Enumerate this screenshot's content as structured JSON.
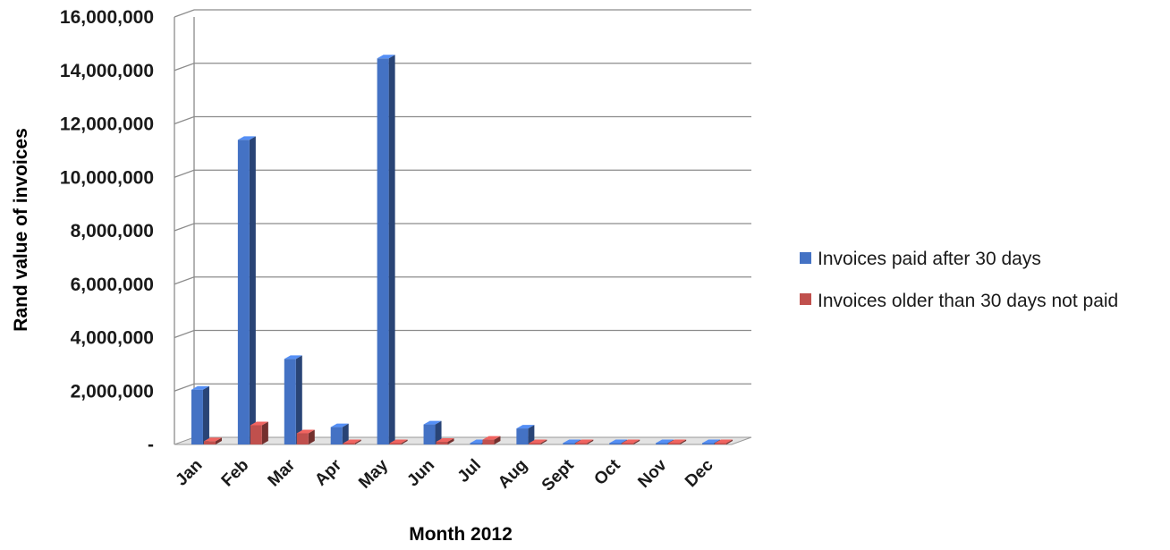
{
  "chart_data": {
    "type": "bar",
    "categories": [
      "Jan",
      "Feb",
      "Mar",
      "Apr",
      "May",
      "Jun",
      "Jul",
      "Aug",
      "Sept",
      "Oct",
      "Nov",
      "Dec"
    ],
    "series": [
      {
        "name": "Invoices paid after 30 days",
        "color": "#4472C4",
        "values": [
          2050000,
          11400000,
          3200000,
          650000,
          14450000,
          750000,
          50000,
          600000,
          0,
          0,
          0,
          0
        ]
      },
      {
        "name": "Invoices older than 30 days not paid",
        "color": "#C0504D",
        "values": [
          120000,
          720000,
          420000,
          50000,
          30000,
          100000,
          180000,
          40000,
          0,
          0,
          0,
          0
        ]
      }
    ],
    "yticks": [
      "-",
      "2,000,000",
      "4,000,000",
      "6,000,000",
      "8,000,000",
      "10,000,000",
      "12,000,000",
      "14,000,000",
      "16,000,000"
    ],
    "ylim": [
      0,
      16000000
    ],
    "xlabel": "Month 2012",
    "ylabel": "Rand value of invoices",
    "grid": true,
    "legend_position": "right",
    "style": "3d-clustered-column"
  }
}
